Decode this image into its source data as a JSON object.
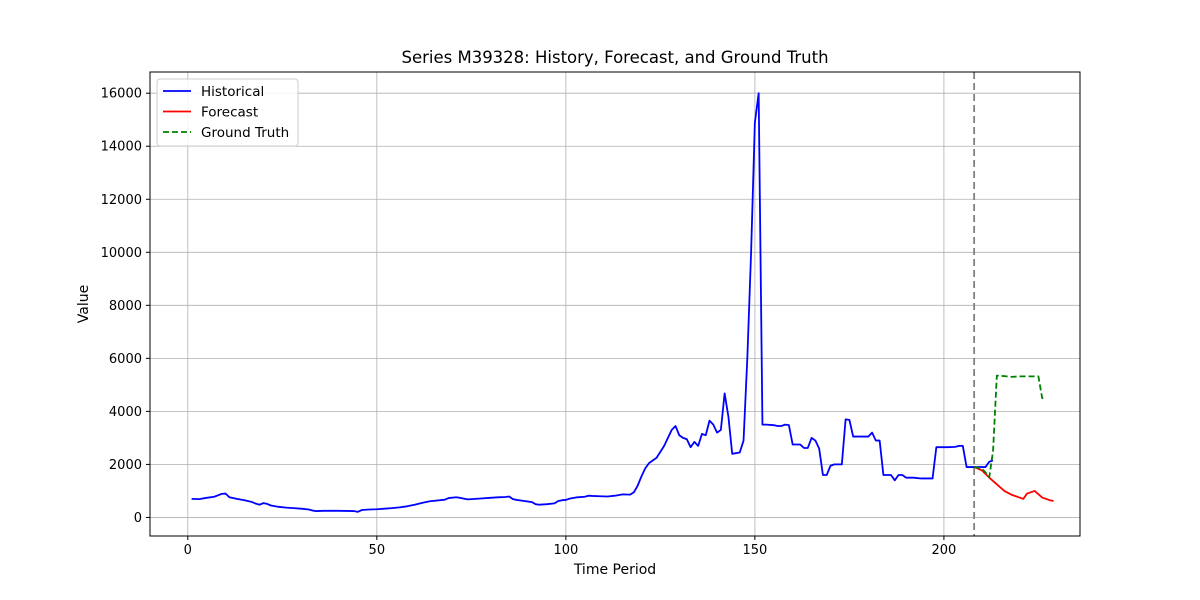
{
  "chart_data": {
    "type": "line",
    "title": "Series M39328: History, Forecast, and Ground Truth",
    "xlabel": "Time Period",
    "ylabel": "Value",
    "xlim": [
      -10,
      236
    ],
    "ylim": [
      -700,
      16800
    ],
    "xticks": [
      0,
      50,
      100,
      150,
      200
    ],
    "yticks": [
      0,
      2000,
      4000,
      6000,
      8000,
      10000,
      12000,
      14000,
      16000
    ],
    "grid": true,
    "legend_position": "upper left",
    "forecast_start_marker": 208,
    "series": [
      {
        "name": "Historical",
        "color": "#0000ff",
        "style": "solid",
        "points": [
          [
            1,
            700
          ],
          [
            3,
            690
          ],
          [
            5,
            740
          ],
          [
            7,
            780
          ],
          [
            9,
            890
          ],
          [
            10,
            900
          ],
          [
            11,
            760
          ],
          [
            13,
            700
          ],
          [
            15,
            650
          ],
          [
            17,
            580
          ],
          [
            18,
            520
          ],
          [
            19,
            480
          ],
          [
            20,
            540
          ],
          [
            21,
            510
          ],
          [
            22,
            450
          ],
          [
            24,
            400
          ],
          [
            26,
            370
          ],
          [
            28,
            350
          ],
          [
            30,
            330
          ],
          [
            32,
            300
          ],
          [
            33,
            260
          ],
          [
            34,
            240
          ],
          [
            36,
            250
          ],
          [
            40,
            250
          ],
          [
            44,
            240
          ],
          [
            45,
            210
          ],
          [
            46,
            280
          ],
          [
            48,
            300
          ],
          [
            50,
            310
          ],
          [
            52,
            330
          ],
          [
            54,
            350
          ],
          [
            56,
            380
          ],
          [
            58,
            420
          ],
          [
            60,
            480
          ],
          [
            62,
            550
          ],
          [
            64,
            610
          ],
          [
            66,
            640
          ],
          [
            68,
            670
          ],
          [
            69,
            730
          ],
          [
            71,
            760
          ],
          [
            72,
            740
          ],
          [
            74,
            680
          ],
          [
            76,
            700
          ],
          [
            78,
            720
          ],
          [
            80,
            740
          ],
          [
            82,
            760
          ],
          [
            84,
            770
          ],
          [
            85,
            790
          ],
          [
            86,
            690
          ],
          [
            87,
            660
          ],
          [
            89,
            620
          ],
          [
            91,
            580
          ],
          [
            92,
            500
          ],
          [
            93,
            480
          ],
          [
            95,
            500
          ],
          [
            97,
            530
          ],
          [
            98,
            620
          ],
          [
            99,
            650
          ],
          [
            100,
            660
          ],
          [
            101,
            710
          ],
          [
            103,
            760
          ],
          [
            105,
            780
          ],
          [
            106,
            820
          ],
          [
            107,
            810
          ],
          [
            109,
            800
          ],
          [
            111,
            790
          ],
          [
            113,
            820
          ],
          [
            115,
            870
          ],
          [
            117,
            860
          ],
          [
            118,
            950
          ],
          [
            119,
            1200
          ],
          [
            120,
            1550
          ],
          [
            121,
            1850
          ],
          [
            122,
            2050
          ],
          [
            124,
            2250
          ],
          [
            126,
            2700
          ],
          [
            127,
            3000
          ],
          [
            128,
            3300
          ],
          [
            129,
            3450
          ],
          [
            130,
            3100
          ],
          [
            131,
            3000
          ],
          [
            132,
            2950
          ],
          [
            133,
            2650
          ],
          [
            134,
            2850
          ],
          [
            135,
            2700
          ],
          [
            136,
            3150
          ],
          [
            137,
            3100
          ],
          [
            138,
            3650
          ],
          [
            139,
            3500
          ],
          [
            140,
            3200
          ],
          [
            141,
            3300
          ],
          [
            142,
            4680
          ],
          [
            143,
            3800
          ],
          [
            144,
            2400
          ],
          [
            146,
            2450
          ],
          [
            147,
            2900
          ],
          [
            148,
            6000
          ],
          [
            149,
            10000
          ],
          [
            150,
            14900
          ],
          [
            151,
            16000
          ],
          [
            152,
            3500
          ],
          [
            153,
            3500
          ],
          [
            155,
            3480
          ],
          [
            156,
            3450
          ],
          [
            157,
            3450
          ],
          [
            158,
            3500
          ],
          [
            159,
            3480
          ],
          [
            160,
            2750
          ],
          [
            162,
            2750
          ],
          [
            163,
            2620
          ],
          [
            164,
            2620
          ],
          [
            165,
            3000
          ],
          [
            166,
            2900
          ],
          [
            167,
            2600
          ],
          [
            168,
            1600
          ],
          [
            169,
            1600
          ],
          [
            170,
            1950
          ],
          [
            171,
            2000
          ],
          [
            173,
            2000
          ],
          [
            174,
            3700
          ],
          [
            175,
            3680
          ],
          [
            176,
            3050
          ],
          [
            178,
            3050
          ],
          [
            180,
            3050
          ],
          [
            181,
            3200
          ],
          [
            182,
            2900
          ],
          [
            183,
            2900
          ],
          [
            184,
            1600
          ],
          [
            186,
            1600
          ],
          [
            187,
            1400
          ],
          [
            188,
            1600
          ],
          [
            189,
            1600
          ],
          [
            190,
            1500
          ],
          [
            192,
            1500
          ],
          [
            194,
            1470
          ],
          [
            196,
            1470
          ],
          [
            197,
            1470
          ],
          [
            198,
            2650
          ],
          [
            201,
            2650
          ],
          [
            203,
            2660
          ],
          [
            204,
            2700
          ],
          [
            205,
            2700
          ],
          [
            206,
            1900
          ],
          [
            208,
            1900
          ],
          [
            211,
            1900
          ],
          [
            212,
            2100
          ],
          [
            213,
            2150
          ]
        ]
      },
      {
        "name": "Forecast",
        "color": "#ff0000",
        "style": "solid",
        "points": [
          [
            208,
            1900
          ],
          [
            210,
            1780
          ],
          [
            212,
            1500
          ],
          [
            214,
            1250
          ],
          [
            216,
            1000
          ],
          [
            218,
            850
          ],
          [
            220,
            750
          ],
          [
            221,
            700
          ],
          [
            222,
            900
          ],
          [
            224,
            1000
          ],
          [
            226,
            750
          ],
          [
            228,
            650
          ],
          [
            229,
            620
          ]
        ]
      },
      {
        "name": "Ground Truth",
        "color": "#008000",
        "style": "dashed",
        "points": [
          [
            208,
            1900
          ],
          [
            210,
            1850
          ],
          [
            211,
            1700
          ],
          [
            212,
            1520
          ],
          [
            213,
            2500
          ],
          [
            214,
            5350
          ],
          [
            216,
            5330
          ],
          [
            218,
            5300
          ],
          [
            220,
            5320
          ],
          [
            222,
            5320
          ],
          [
            224,
            5320
          ],
          [
            225,
            5320
          ],
          [
            226,
            4500
          ],
          [
            227,
            4480
          ]
        ]
      }
    ]
  }
}
